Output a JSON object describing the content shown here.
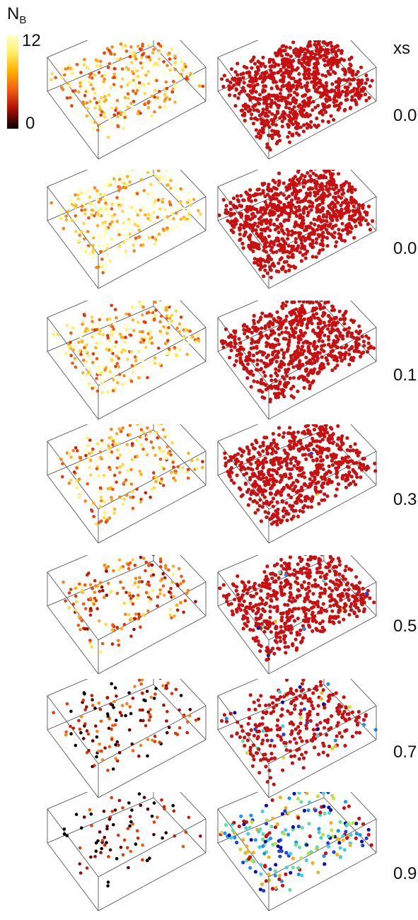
{
  "colorbar": {
    "label_main": "N",
    "label_sub": "B",
    "max_label": "12",
    "min_label": "0",
    "palette_left": [
      "#000000",
      "#5a0000",
      "#9a0c06",
      "#c81e08",
      "#e2380c",
      "#f05a12",
      "#f8841a",
      "#ffb020",
      "#ffd840",
      "#fff070",
      "#ffffb8"
    ],
    "palette_right": [
      "#c81010",
      "#1010a0",
      "#2040e0",
      "#2090f0",
      "#40d0e0",
      "#60e0a0",
      "#c0e040",
      "#f0b020"
    ]
  },
  "column_header": "xs",
  "rows": [
    {
      "xs": "0.0",
      "left_density": 900,
      "left_level": 0.72,
      "right_density": 2600,
      "right_special": 0.003
    },
    {
      "xs": "0.01",
      "left_density": 900,
      "left_level": 0.85,
      "right_density": 3200,
      "right_special": 0.0
    },
    {
      "xs": "0.1",
      "left_density": 850,
      "left_level": 0.74,
      "right_density": 2200,
      "right_special": 0.002
    },
    {
      "xs": "0.3",
      "left_density": 700,
      "left_level": 0.68,
      "right_density": 2000,
      "right_special": 0.006
    },
    {
      "xs": "0.5",
      "left_density": 600,
      "left_level": 0.55,
      "right_density": 1800,
      "right_special": 0.015
    },
    {
      "xs": "0.7",
      "left_density": 450,
      "left_level": 0.28,
      "right_density": 900,
      "right_special": 0.12
    },
    {
      "xs": "0.9",
      "left_density": 260,
      "left_level": 0.14,
      "right_density": 700,
      "right_special": 0.88
    }
  ]
}
